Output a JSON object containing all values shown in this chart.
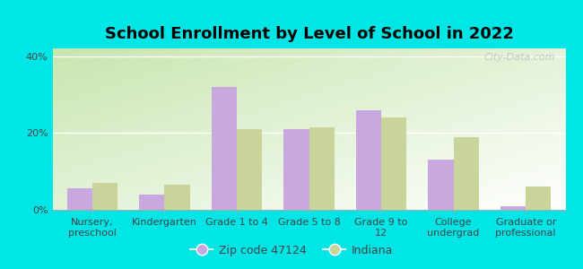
{
  "title": "School Enrollment by Level of School in 2022",
  "categories": [
    "Nursery,\npreschool",
    "Kindergarten",
    "Grade 1 to 4",
    "Grade 5 to 8",
    "Grade 9 to\n12",
    "College\nundergrad",
    "Graduate or\nprofessional"
  ],
  "zip_values": [
    5.5,
    4.0,
    32.0,
    21.0,
    26.0,
    13.0,
    1.0
  ],
  "indiana_values": [
    7.0,
    6.5,
    21.0,
    21.5,
    24.0,
    19.0,
    6.0
  ],
  "zip_color": "#c9a8e0",
  "indiana_color": "#c8d49a",
  "background_outer": "#00e5e5",
  "ylim": [
    0,
    42
  ],
  "yticks": [
    0,
    20,
    40
  ],
  "ytick_labels": [
    "0%",
    "20%",
    "40%"
  ],
  "legend_zip_label": "Zip code 47124",
  "legend_indiana_label": "Indiana",
  "bar_width": 0.35,
  "watermark": "City-Data.com",
  "title_fontsize": 13,
  "tick_fontsize": 8,
  "legend_fontsize": 9
}
